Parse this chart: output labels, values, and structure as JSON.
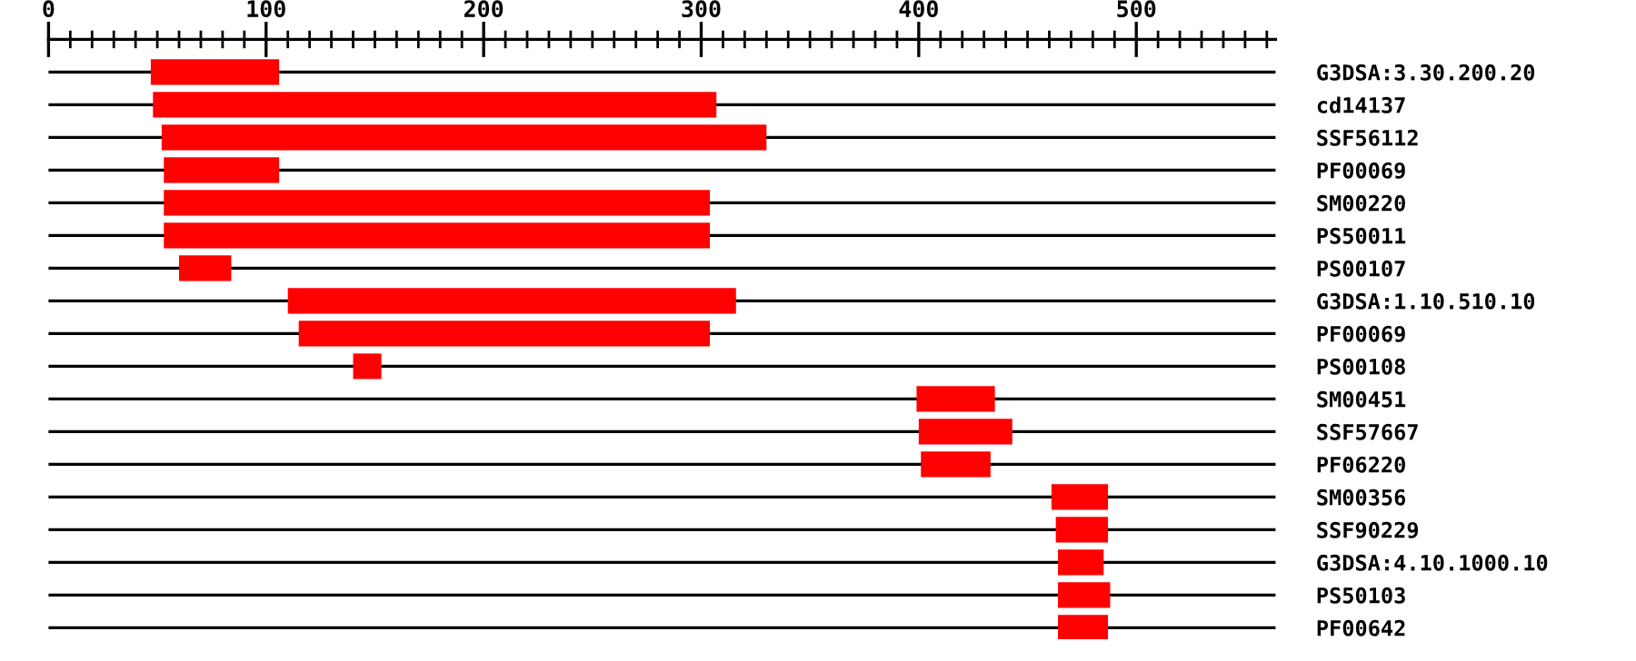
{
  "chart_data": {
    "type": "bar",
    "orientation": "horizontal",
    "categories": [
      "G3DSA:3.30.200.20",
      "cd14137",
      "SSF56112",
      "PF00069",
      "SM00220",
      "PS50011",
      "PS00107",
      "G3DSA:1.10.510.10",
      "PF00069",
      "PS00108",
      "SM00451",
      "SSF57667",
      "PF06220",
      "SM00356",
      "SSF90229",
      "G3DSA:4.10.1000.10",
      "PS50103",
      "PF00642"
    ],
    "base": [
      47,
      48,
      52,
      53,
      53,
      53,
      60,
      110,
      115,
      140,
      399,
      400,
      401,
      461,
      463,
      464,
      464,
      464
    ],
    "values": [
      59,
      259,
      278,
      53,
      251,
      251,
      24,
      206,
      189,
      13,
      36,
      43,
      32,
      26,
      24,
      21,
      24,
      23
    ],
    "color": "#ff0000",
    "xlim": [
      0,
      564
    ],
    "xticks": [
      0,
      {
        "value": 10,
        "label": null
      },
      {
        "value": 20,
        "label": null
      },
      {
        "value": 30,
        "label": null
      },
      {
        "value": 40,
        "label": null
      },
      {
        "value": 50,
        "label": null
      },
      {
        "value": 60,
        "label": null
      },
      {
        "value": 70,
        "label": null
      },
      {
        "value": 80,
        "label": null
      },
      {
        "value": 90,
        "label": null
      },
      100,
      {
        "value": 110,
        "label": null
      },
      {
        "value": 120,
        "label": null
      },
      {
        "value": 130,
        "label": null
      },
      {
        "value": 140,
        "label": null
      },
      {
        "value": 150,
        "label": null
      },
      {
        "value": 160,
        "label": null
      },
      {
        "value": 170,
        "label": null
      },
      {
        "value": 180,
        "label": null
      },
      {
        "value": 190,
        "label": null
      },
      200,
      {
        "value": 210,
        "label": null
      },
      {
        "value": 220,
        "label": null
      },
      {
        "value": 230,
        "label": null
      },
      {
        "value": 240,
        "label": null
      },
      {
        "value": 250,
        "label": null
      },
      {
        "value": 260,
        "label": null
      },
      {
        "value": 270,
        "label": null
      },
      {
        "value": 280,
        "label": null
      },
      {
        "value": 290,
        "label": null
      },
      300,
      {
        "value": 310,
        "label": null
      },
      {
        "value": 320,
        "label": null
      },
      {
        "value": 330,
        "label": null
      },
      {
        "value": 340,
        "label": null
      },
      {
        "value": 350,
        "label": null
      },
      {
        "value": 360,
        "label": null
      },
      {
        "value": 370,
        "label": null
      },
      {
        "value": 380,
        "label": null
      },
      {
        "value": 390,
        "label": null
      },
      400,
      {
        "value": 410,
        "label": null
      },
      {
        "value": 420,
        "label": null
      },
      {
        "value": 430,
        "label": null
      },
      {
        "value": 440,
        "label": null
      },
      {
        "value": 450,
        "label": null
      },
      {
        "value": 460,
        "label": null
      },
      {
        "value": 470,
        "label": null
      },
      {
        "value": 480,
        "label": null
      },
      {
        "value": 490,
        "label": null
      },
      500,
      {
        "value": 510,
        "label": null
      },
      {
        "value": 520,
        "label": null
      },
      {
        "value": 530,
        "label": null
      },
      {
        "value": 540,
        "label": null
      },
      {
        "value": 550,
        "label": null
      },
      {
        "value": 560,
        "label": null
      }
    ],
    "grid": "y"
  }
}
